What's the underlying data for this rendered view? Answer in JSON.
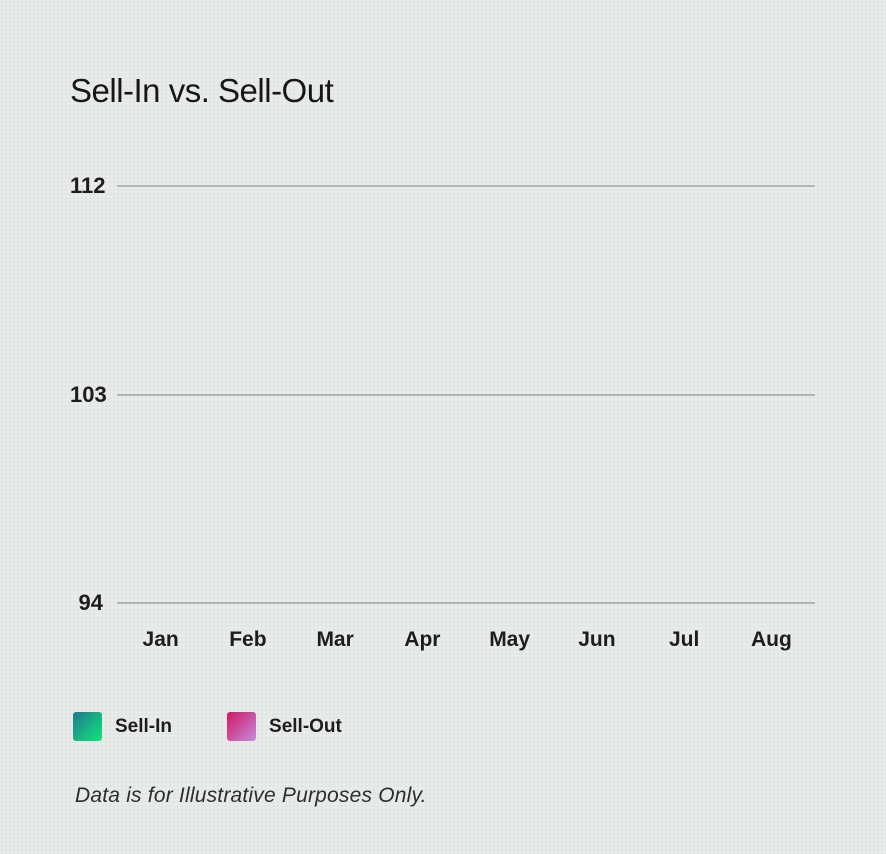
{
  "page": {
    "footnote": "Data is for Illustrative Purposes Only."
  },
  "colors": {
    "background": "#e8ebe9",
    "gridline": "#b1b5b3",
    "text": "#1d1d1d",
    "sell_in_start": "#1f7a8c",
    "sell_in_end": "#10e67c",
    "sell_out_start": "#d41560",
    "sell_out_end": "#c28de1"
  },
  "chart_data": {
    "type": "line",
    "title": "Sell-In vs. Sell-Out",
    "categories": [
      "Jan",
      "Feb",
      "Mar",
      "Apr",
      "May",
      "Jun",
      "Jul",
      "Aug"
    ],
    "y_ticks": [
      "112",
      "103",
      "94"
    ],
    "ylim": [
      94,
      112
    ],
    "grid": "horizontal-only",
    "legend_position": "bottom-left",
    "series": [
      {
        "name": "Sell-In",
        "values": []
      },
      {
        "name": "Sell-Out",
        "values": []
      }
    ],
    "plot_area_empty": true
  }
}
